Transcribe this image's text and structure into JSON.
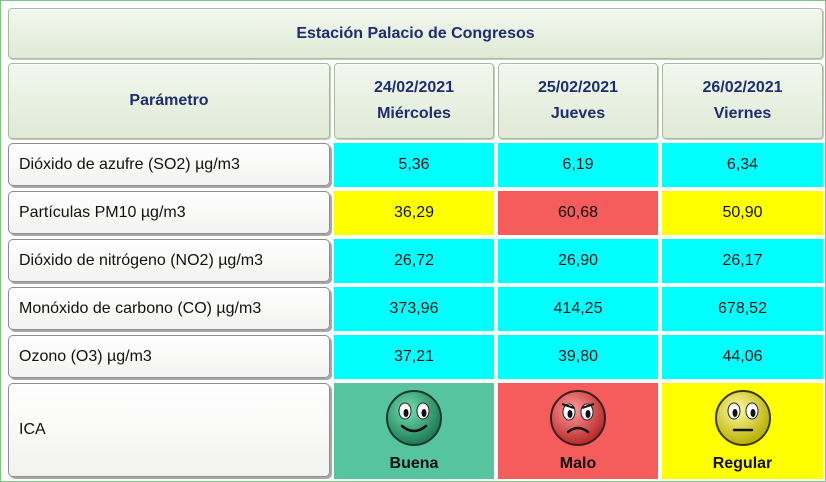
{
  "station_title": "Estación Palacio de Congresos",
  "header": {
    "param_label": "Parámetro",
    "days": [
      {
        "date": "24/02/2021",
        "weekday": "Miércoles"
      },
      {
        "date": "25/02/2021",
        "weekday": "Jueves"
      },
      {
        "date": "26/02/2021",
        "weekday": "Viernes"
      }
    ]
  },
  "rows": [
    {
      "label": "Dióxido de azufre (SO2) µg/m3",
      "values": [
        "5,36",
        "6,19",
        "6,34"
      ],
      "colors": [
        "#00ffff",
        "#00ffff",
        "#00ffff"
      ]
    },
    {
      "label": "Partículas PM10 µg/m3",
      "values": [
        "36,29",
        "60,68",
        "50,90"
      ],
      "colors": [
        "#ffff00",
        "#f55c5c",
        "#ffff00"
      ]
    },
    {
      "label": "Dióxido de nitrógeno (NO2) µg/m3",
      "values": [
        "26,72",
        "26,90",
        "26,17"
      ],
      "colors": [
        "#00ffff",
        "#00ffff",
        "#00ffff"
      ]
    },
    {
      "label": "Monóxido de carbono (CO) µg/m3",
      "values": [
        "373,96",
        "414,25",
        "678,52"
      ],
      "colors": [
        "#00ffff",
        "#00ffff",
        "#00ffff"
      ]
    },
    {
      "label": "Ozono (O3) µg/m3",
      "values": [
        "37,21",
        "39,80",
        "44,06"
      ],
      "colors": [
        "#00ffff",
        "#00ffff",
        "#00ffff"
      ]
    }
  ],
  "ica": {
    "label": "ICA",
    "days": [
      {
        "status": "Buena",
        "color": "#57c4a0",
        "face": "happy-face-icon"
      },
      {
        "status": "Malo",
        "color": "#f55c5c",
        "face": "sad-face-icon"
      },
      {
        "status": "Regular",
        "color": "#ffff00",
        "face": "neutral-face-icon"
      }
    ]
  }
}
